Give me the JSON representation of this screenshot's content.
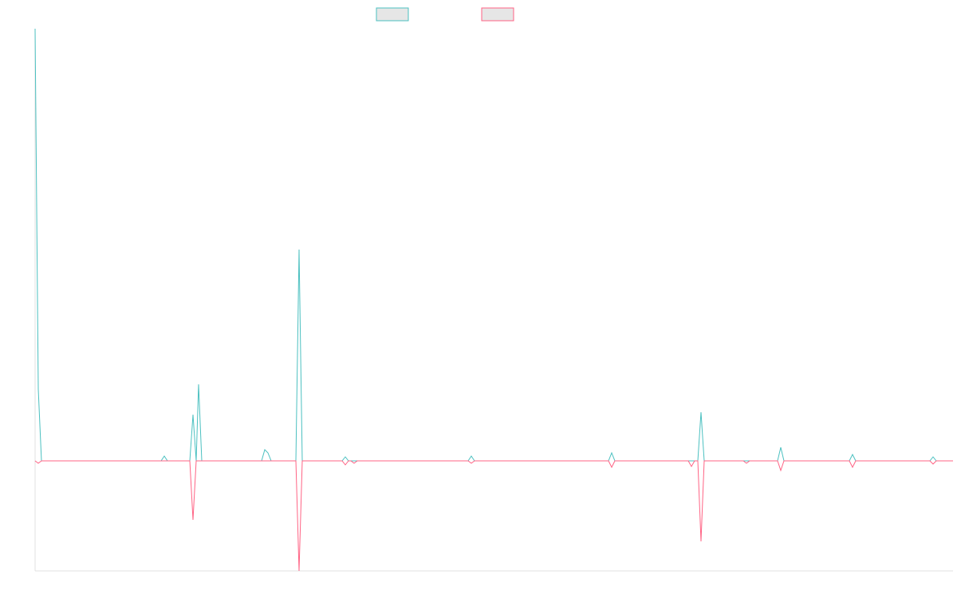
{
  "chart_data": {
    "type": "line",
    "xlim": [
      0,
      1151
    ],
    "ylim": [
      -138,
      542
    ],
    "series": [
      {
        "color": "#4bc0c0",
        "x": [
          0,
          4,
          8,
          158,
          162,
          166,
          194,
          198,
          202,
          205,
          209,
          284,
          288,
          292,
          296,
          327,
          331,
          335,
          385,
          389,
          393,
          543,
          547,
          551,
          719,
          723,
          727,
          831,
          835,
          839,
          931,
          935,
          939,
          1021,
          1025,
          1029,
          1122,
          1126,
          1130,
          1151
        ],
        "values": [
          542,
          90,
          0,
          0,
          6,
          0,
          0,
          58,
          0,
          96,
          0,
          0,
          14,
          10,
          0,
          0,
          265,
          0,
          0,
          5,
          0,
          0,
          6,
          0,
          0,
          10,
          0,
          0,
          61,
          0,
          0,
          17,
          0,
          0,
          8,
          0,
          0,
          5,
          0,
          0
        ]
      },
      {
        "color": "#ff6384",
        "x": [
          0,
          4,
          8,
          194,
          198,
          202,
          327,
          331,
          335,
          385,
          389,
          393,
          396,
          400,
          404,
          543,
          547,
          551,
          719,
          723,
          727,
          819,
          823,
          827,
          831,
          835,
          839,
          888,
          892,
          896,
          931,
          935,
          939,
          1021,
          1025,
          1029,
          1122,
          1126,
          1130,
          1151
        ],
        "values": [
          0,
          -3,
          0,
          0,
          -74,
          0,
          0,
          -138,
          0,
          0,
          -5,
          0,
          0,
          -3,
          0,
          0,
          -3,
          0,
          0,
          -8,
          0,
          0,
          -7,
          0,
          0,
          -101,
          0,
          0,
          -3,
          0,
          0,
          -12,
          0,
          0,
          -8,
          0,
          0,
          -4,
          0,
          0
        ]
      }
    ]
  }
}
